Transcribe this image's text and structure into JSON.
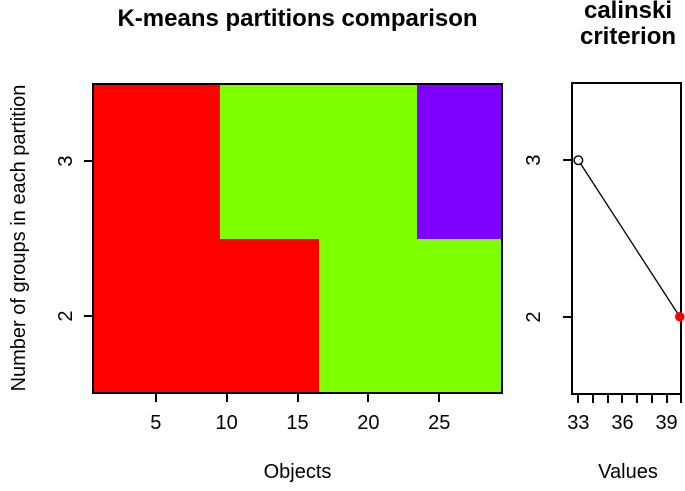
{
  "left_panel": {
    "title": "K-means partitions comparison",
    "xlabel": "Objects",
    "ylabel": "Number of groups in each partition",
    "x_tick_labels": [
      "5",
      "10",
      "15",
      "20",
      "25"
    ],
    "y_tick_labels": [
      "3",
      "2"
    ]
  },
  "right_panel": {
    "title_line1": "calinski",
    "title_line2": "criterion",
    "xlabel": "Values",
    "x_tick_labels": [
      "33",
      "36",
      "39"
    ],
    "y_tick_labels": [
      "3",
      "2"
    ]
  },
  "colors": {
    "group_red": "#FF0000",
    "group_green": "#7DFF00",
    "group_purple": "#8000FF",
    "best_point": "#FF0000",
    "line": "#000000",
    "box_border": "#000000"
  },
  "chart_data": [
    {
      "type": "heatmap",
      "title": "K-means partitions comparison",
      "xlabel": "Objects",
      "ylabel": "Number of groups in each partition",
      "n_objects": 29,
      "x_range": [
        0.5,
        29.5
      ],
      "x_ticks": [
        5,
        10,
        15,
        20,
        25
      ],
      "y_ticks": [
        3,
        2
      ],
      "y_range": [
        1.5,
        3.5
      ],
      "grid": false,
      "rows": [
        {
          "groups": 3,
          "segments": [
            {
              "from_object": 1,
              "to_object": 9,
              "color": "#FF0000"
            },
            {
              "from_object": 10,
              "to_object": 23,
              "color": "#7DFF00"
            },
            {
              "from_object": 24,
              "to_object": 29,
              "color": "#8000FF"
            }
          ]
        },
        {
          "groups": 2,
          "segments": [
            {
              "from_object": 1,
              "to_object": 16,
              "color": "#FF0000"
            },
            {
              "from_object": 17,
              "to_object": 29,
              "color": "#7DFF00"
            }
          ]
        }
      ]
    },
    {
      "type": "line",
      "title": "calinski criterion",
      "xlabel": "Values",
      "x_range": [
        32.5,
        40.05
      ],
      "x_ticks": [
        33,
        34,
        35,
        36,
        37,
        38,
        39,
        40
      ],
      "x_labeled_ticks": [
        33,
        36,
        39
      ],
      "y_ticks": [
        3,
        2
      ],
      "y_range": [
        1.5,
        3.5
      ],
      "points": [
        {
          "k": 3,
          "value": 33.0,
          "marker": "open-circle",
          "color": "#FFFFFF"
        },
        {
          "k": 2,
          "value": 39.9,
          "marker": "filled-circle",
          "color": "#FF0000"
        }
      ]
    }
  ]
}
